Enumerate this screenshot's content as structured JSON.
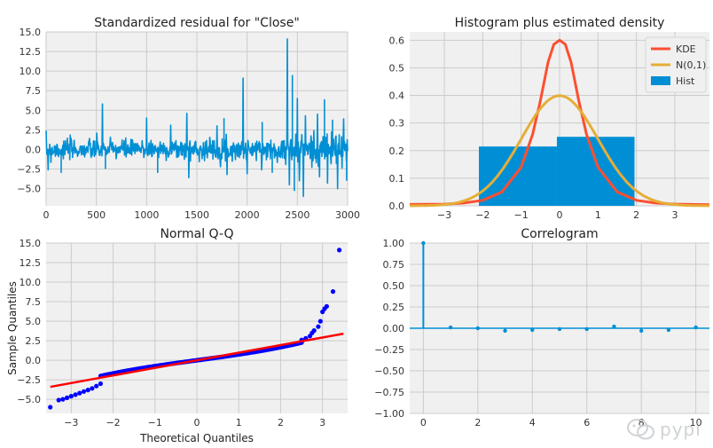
{
  "chart_data": [
    {
      "type": "line",
      "title": "Standardized residual for \"Close\"",
      "xlim": [
        0,
        3000
      ],
      "ylim": [
        -7.2,
        15
      ],
      "x_ticks": [
        0,
        500,
        1000,
        1500,
        2000,
        2500,
        3000
      ],
      "y_ticks": [
        -5.0,
        -2.5,
        0.0,
        2.5,
        5.0,
        7.5,
        10.0,
        12.5,
        15.0
      ],
      "x_tick_labels": [
        "0",
        "500",
        "1000",
        "1500",
        "2000",
        "2500",
        "3000"
      ],
      "y_tick_labels": [
        "−5.0",
        "−2.5",
        "0.0",
        "2.5",
        "5.0",
        "7.5",
        "10.0",
        "12.5",
        "15.0"
      ],
      "grid": true,
      "series": [
        {
          "color": "#008fd5",
          "spikes": [
            {
              "x": 20,
              "y": -2.6
            },
            {
              "x": 150,
              "y": -3.0
            },
            {
              "x": 560,
              "y": 5.8
            },
            {
              "x": 590,
              "y": -2.5
            },
            {
              "x": 1000,
              "y": 4.0
            },
            {
              "x": 1110,
              "y": -3.0
            },
            {
              "x": 1240,
              "y": 3.1
            },
            {
              "x": 1400,
              "y": 4.6
            },
            {
              "x": 1420,
              "y": -3.6
            },
            {
              "x": 1700,
              "y": 3.0
            },
            {
              "x": 1770,
              "y": 4.0
            },
            {
              "x": 1800,
              "y": -3.2
            },
            {
              "x": 1960,
              "y": 9.1
            },
            {
              "x": 2000,
              "y": -3.1
            },
            {
              "x": 2150,
              "y": 3.5
            },
            {
              "x": 2250,
              "y": -3.0
            },
            {
              "x": 2400,
              "y": 14.1
            },
            {
              "x": 2420,
              "y": -4.5
            },
            {
              "x": 2450,
              "y": 9.5
            },
            {
              "x": 2470,
              "y": -5.3
            },
            {
              "x": 2500,
              "y": 6.5
            },
            {
              "x": 2520,
              "y": -4.0
            },
            {
              "x": 2560,
              "y": -6.0
            },
            {
              "x": 2580,
              "y": 4.3
            },
            {
              "x": 2700,
              "y": 4.5
            },
            {
              "x": 2720,
              "y": -3.5
            },
            {
              "x": 2770,
              "y": 6.4
            },
            {
              "x": 2800,
              "y": -4.3
            },
            {
              "x": 2850,
              "y": 3.8
            },
            {
              "x": 2900,
              "y": -5.0
            },
            {
              "x": 2960,
              "y": 3.9
            },
            {
              "x": 2990,
              "y": -4.0
            }
          ]
        }
      ]
    },
    {
      "type": "histogram",
      "title": "Histogram plus estimated density",
      "xlim": [
        -3.9,
        3.9
      ],
      "ylim": [
        0,
        0.63
      ],
      "x_ticks": [
        -3,
        -2,
        -1,
        0,
        1,
        2,
        3
      ],
      "y_ticks": [
        0.0,
        0.1,
        0.2,
        0.3,
        0.4,
        0.5,
        0.6
      ],
      "x_tick_labels": [
        "−3",
        "−2",
        "−1",
        "0",
        "1",
        "2",
        "3"
      ],
      "y_tick_labels": [
        "0.0",
        "0.1",
        "0.2",
        "0.3",
        "0.4",
        "0.5",
        "0.6"
      ],
      "grid": true,
      "legend": {
        "position": "upper-right",
        "entries": [
          {
            "label": "KDE",
            "color": "#fc4f30",
            "kind": "line"
          },
          {
            "label": "N(0,1)",
            "color": "#e5ae38",
            "kind": "line"
          },
          {
            "label": "Hist",
            "color": "#008fd5",
            "kind": "box"
          }
        ]
      },
      "bins": [
        {
          "x0": -2.1,
          "x1": -0.07,
          "height": 0.215
        },
        {
          "x0": -0.07,
          "x1": 1.95,
          "height": 0.25
        }
      ],
      "kde_points": [
        [
          -3.9,
          0.005
        ],
        [
          -3.0,
          0.006
        ],
        [
          -2.5,
          0.01
        ],
        [
          -2.0,
          0.02
        ],
        [
          -1.5,
          0.05
        ],
        [
          -1.0,
          0.14
        ],
        [
          -0.7,
          0.26
        ],
        [
          -0.5,
          0.38
        ],
        [
          -0.3,
          0.52
        ],
        [
          -0.15,
          0.585
        ],
        [
          0.0,
          0.6
        ],
        [
          0.15,
          0.585
        ],
        [
          0.3,
          0.52
        ],
        [
          0.5,
          0.38
        ],
        [
          0.7,
          0.26
        ],
        [
          1.0,
          0.14
        ],
        [
          1.5,
          0.05
        ],
        [
          2.0,
          0.02
        ],
        [
          2.5,
          0.01
        ],
        [
          3.0,
          0.006
        ],
        [
          3.9,
          0.004
        ]
      ],
      "normal_line": {
        "mean": 0,
        "sd": 1
      }
    },
    {
      "type": "scatter",
      "title": "Normal Q-Q",
      "xlabel": "Theoretical Quantiles",
      "ylabel": "Sample Quantiles",
      "xlim": [
        -3.6,
        3.6
      ],
      "ylim": [
        -6.8,
        15
      ],
      "x_ticks": [
        -3,
        -2,
        -1,
        0,
        1,
        2,
        3
      ],
      "y_ticks": [
        -5.0,
        -2.5,
        0.0,
        2.5,
        5.0,
        7.5,
        10.0,
        12.5,
        15.0
      ],
      "x_tick_labels": [
        "−3",
        "−2",
        "−1",
        "0",
        "1",
        "2",
        "3"
      ],
      "y_tick_labels": [
        "−5.0",
        "−2.5",
        "0.0",
        "2.5",
        "5.0",
        "7.5",
        "10.0",
        "12.5",
        "15.0"
      ],
      "grid": true,
      "points_color": "#0000ff",
      "line_color": "#ff0000",
      "reference_line": {
        "x": [
          -3.5,
          3.5
        ],
        "y": [
          -3.4,
          3.4
        ]
      },
      "outliers": [
        [
          -3.5,
          -6.0
        ],
        [
          -3.3,
          -5.1
        ],
        [
          -3.2,
          -5.0
        ],
        [
          -3.1,
          -4.8
        ],
        [
          -3.0,
          -4.6
        ],
        [
          -2.9,
          -4.4
        ],
        [
          -2.8,
          -4.2
        ],
        [
          -2.7,
          -4.0
        ],
        [
          -2.6,
          -3.8
        ],
        [
          -2.5,
          -3.6
        ],
        [
          -2.4,
          -3.3
        ],
        [
          -2.3,
          -3.0
        ],
        [
          2.5,
          2.6
        ],
        [
          2.6,
          2.8
        ],
        [
          2.7,
          3.1
        ],
        [
          2.75,
          3.5
        ],
        [
          2.8,
          3.8
        ],
        [
          2.9,
          4.3
        ],
        [
          2.95,
          5.0
        ],
        [
          3.0,
          6.2
        ],
        [
          3.05,
          6.6
        ],
        [
          3.1,
          6.9
        ],
        [
          3.25,
          8.8
        ],
        [
          3.4,
          14.1
        ]
      ]
    },
    {
      "type": "bar",
      "title": "Correlogram",
      "xlim": [
        -0.5,
        10.5
      ],
      "ylim": [
        -1.0,
        1.0
      ],
      "x_ticks": [
        0,
        2,
        4,
        6,
        8,
        10
      ],
      "y_ticks": [
        -1.0,
        -0.75,
        -0.5,
        -0.25,
        0.0,
        0.25,
        0.5,
        0.75,
        1.0
      ],
      "x_tick_labels": [
        "0",
        "2",
        "4",
        "6",
        "8",
        "10"
      ],
      "y_tick_labels": [
        "−1.00",
        "−0.75",
        "−0.50",
        "−0.25",
        "0.00",
        "0.25",
        "0.50",
        "0.75",
        "1.00"
      ],
      "grid": true,
      "color": "#008fd5",
      "lags": [
        0,
        1,
        2,
        3,
        4,
        5,
        6,
        7,
        8,
        9,
        10
      ],
      "values": [
        1.0,
        0.01,
        0.0,
        -0.03,
        -0.02,
        -0.01,
        -0.01,
        0.02,
        -0.03,
        -0.02,
        0.01
      ]
    }
  ],
  "watermark": {
    "text": "pypi"
  }
}
